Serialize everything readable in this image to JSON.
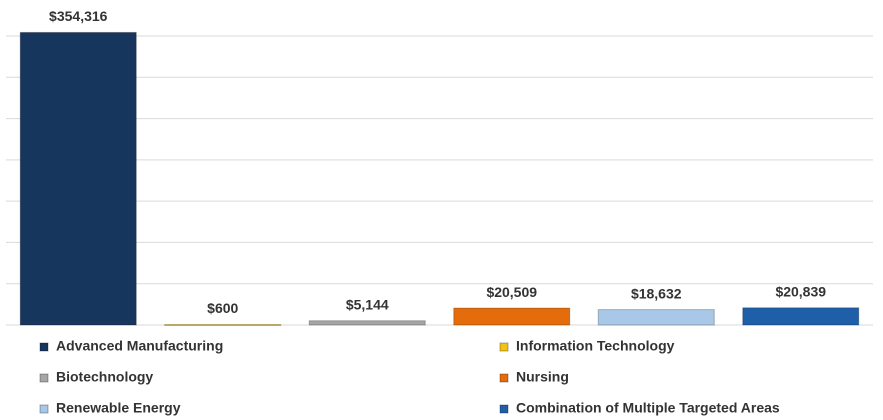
{
  "chart_data": {
    "type": "bar",
    "categories": [
      "Advanced Manufacturing",
      "Information Technology",
      "Biotechnology",
      "Nursing",
      "Renewable Energy",
      "Combination of Multiple Targeted Areas"
    ],
    "values": [
      354316,
      600,
      5144,
      20509,
      18632,
      20839
    ],
    "value_labels": [
      "$354,316",
      "$600",
      "$5,144",
      "$20,509",
      "$18,632",
      "$20,839"
    ],
    "colors": [
      "#17365d",
      "#f2c314",
      "#a6a6a6",
      "#e46c0a",
      "#a9c8e8",
      "#1f5ea8"
    ],
    "ylim": [
      0,
      350000
    ],
    "yticks": [
      0,
      50000,
      100000,
      150000,
      200000,
      250000,
      300000,
      350000
    ],
    "grid": true,
    "legend": "bottom"
  }
}
